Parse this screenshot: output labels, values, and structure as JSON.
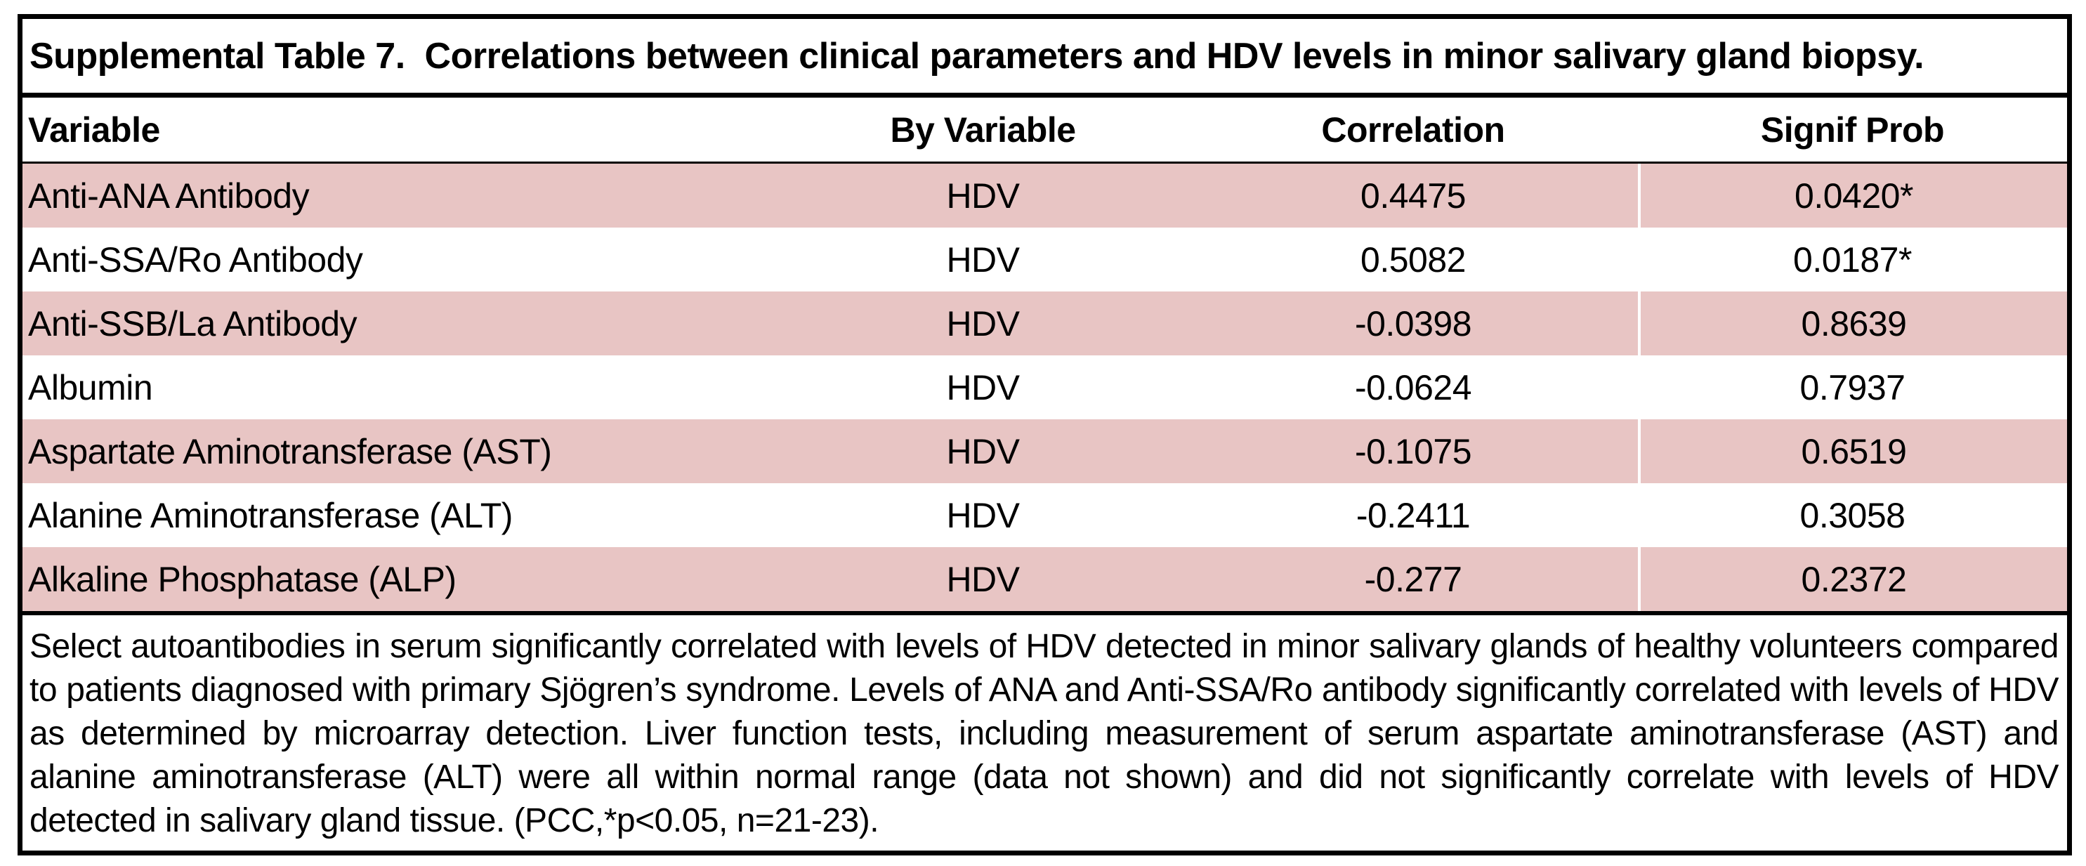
{
  "title": "Supplemental Table 7.  Correlations between clinical parameters and HDV levels in minor salivary gland biopsy.",
  "columns": {
    "variable": "Variable",
    "by": "By Variable",
    "correlation": "Correlation",
    "signif": "Signif Prob"
  },
  "rows": [
    {
      "variable": "Anti-ANA Antibody",
      "by": "HDV",
      "correlation": "0.4475",
      "signif": "0.0420*",
      "highlight": true
    },
    {
      "variable": "Anti-SSA/Ro Antibody",
      "by": "HDV",
      "correlation": "0.5082",
      "signif": "0.0187*",
      "highlight": false
    },
    {
      "variable": "Anti-SSB/La Antibody",
      "by": "HDV",
      "correlation": "-0.0398",
      "signif": "0.8639",
      "highlight": true
    },
    {
      "variable": "Albumin",
      "by": "HDV",
      "correlation": "-0.0624",
      "signif": "0.7937",
      "highlight": false
    },
    {
      "variable": "Aspartate Aminotransferase (AST)",
      "by": "HDV",
      "correlation": "-0.1075",
      "signif": "0.6519",
      "highlight": true
    },
    {
      "variable": "Alanine Aminotransferase (ALT)",
      "by": "HDV",
      "correlation": "-0.2411",
      "signif": "0.3058",
      "highlight": false
    },
    {
      "variable": "Alkaline Phosphatase (ALP)",
      "by": "HDV",
      "correlation": "-0.277",
      "signif": "0.2372",
      "highlight": true
    }
  ],
  "footnote": "Select autoantibodies in serum significantly correlated with levels of HDV detected in minor salivary glands of healthy volunteers compared to patients diagnosed with primary Sjögren’s syndrome.  Levels of ANA and Anti-SSA/Ro antibody significantly correlated with levels of HDV as determined by microarray detection.  Liver function tests, including measurement of serum aspartate aminotransferase (AST) and alanine aminotransferase (ALT) were all within normal range (data not shown) and did not significantly correlate with levels of HDV detected in salivary gland tissue.  (PCC,*p<0.05, n=21-23).",
  "colors": {
    "highlight_pink": "#e8c5c4",
    "border_black": "#000000",
    "background": "#ffffff"
  }
}
